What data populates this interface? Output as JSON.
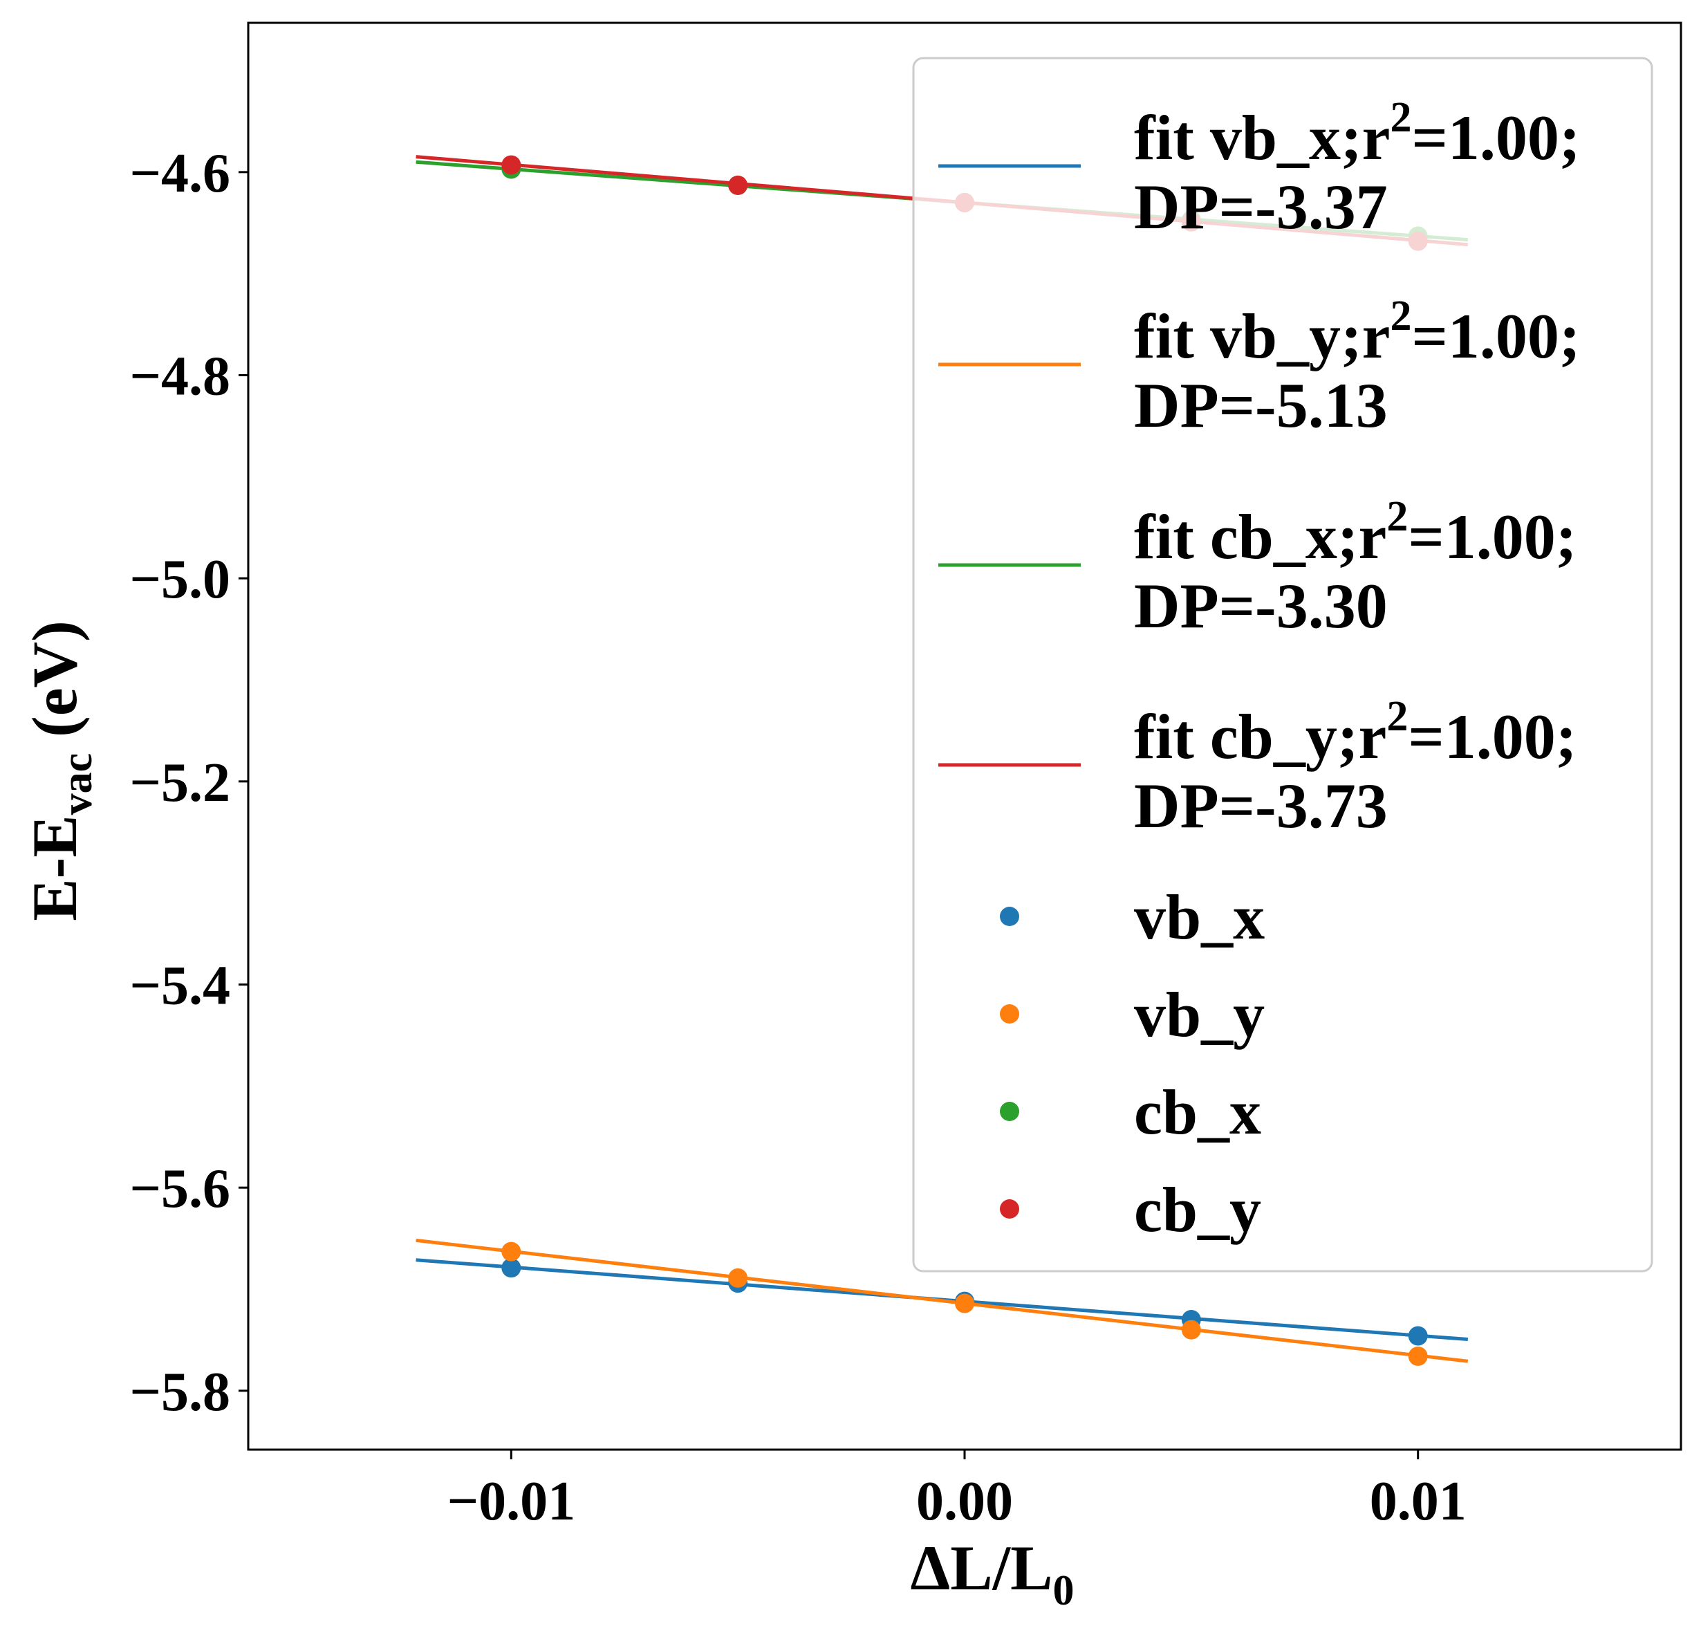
{
  "chart_data": {
    "type": "scatter",
    "xlabel": {
      "main": "ΔL/L",
      "sub": "0"
    },
    "ylabel": {
      "main": "E-E",
      "sub": "vac",
      "suffix": " (eV)"
    },
    "xlim": [
      -0.0158,
      0.0158
    ],
    "ylim": [
      -5.858,
      -4.453
    ],
    "xticks": [
      -0.01,
      0.0,
      0.01
    ],
    "xtick_labels": [
      "−0.01",
      "0.00",
      "0.01"
    ],
    "yticks": [
      -4.6,
      -4.8,
      -5.0,
      -5.2,
      -5.4,
      -5.6,
      -5.8
    ],
    "ytick_labels": [
      "−4.6",
      "−4.8",
      "−5.0",
      "−5.2",
      "−5.4",
      "−5.6",
      "−5.8"
    ],
    "grid": false,
    "legend_position": "upper right",
    "fit_x_range": [
      -0.0121,
      0.0111
    ],
    "series": [
      {
        "name": "vb_x",
        "color": "#1f77b4",
        "x": [
          -0.01,
          -0.005,
          0.0,
          0.005,
          0.01
        ],
        "y": [
          -5.679,
          -5.694,
          -5.712,
          -5.73,
          -5.746
        ],
        "fit": {
          "slope": -3.37,
          "intercept": -5.712,
          "label_line1": "fit vb_x;r",
          "label_sup": "2",
          "label_line1_tail": "=1.00;",
          "label_line2": "DP=-3.37"
        }
      },
      {
        "name": "vb_y",
        "color": "#ff7f0e",
        "x": [
          -0.01,
          -0.005,
          0.0,
          0.005,
          0.01
        ],
        "y": [
          -5.663,
          -5.689,
          -5.714,
          -5.74,
          -5.766
        ],
        "fit": {
          "slope": -5.13,
          "intercept": -5.714,
          "label_line1": "fit vb_y;r",
          "label_sup": "2",
          "label_line1_tail": "=1.00;",
          "label_line2": "DP=-5.13"
        }
      },
      {
        "name": "cb_x",
        "color": "#2ca02c",
        "x": [
          -0.01,
          -0.005,
          0.0,
          0.005,
          0.01
        ],
        "y": [
          -4.597,
          -4.613,
          -4.63,
          -4.647,
          -4.663
        ],
        "fit": {
          "slope": -3.3,
          "intercept": -4.63,
          "label_line1": "fit cb_x;r",
          "label_sup": "2",
          "label_line1_tail": "=1.00;",
          "label_line2": "DP=-3.30"
        }
      },
      {
        "name": "cb_y",
        "color": "#d62728",
        "x": [
          -0.01,
          -0.005,
          0.0,
          0.005,
          0.01
        ],
        "y": [
          -4.593,
          -4.613,
          -4.63,
          -4.649,
          -4.668
        ],
        "fit": {
          "slope": -3.73,
          "intercept": -4.63,
          "label_line1": "fit cb_y;r",
          "label_sup": "2",
          "label_line1_tail": "=1.00;",
          "label_line2": "DP=-3.73"
        }
      }
    ]
  }
}
